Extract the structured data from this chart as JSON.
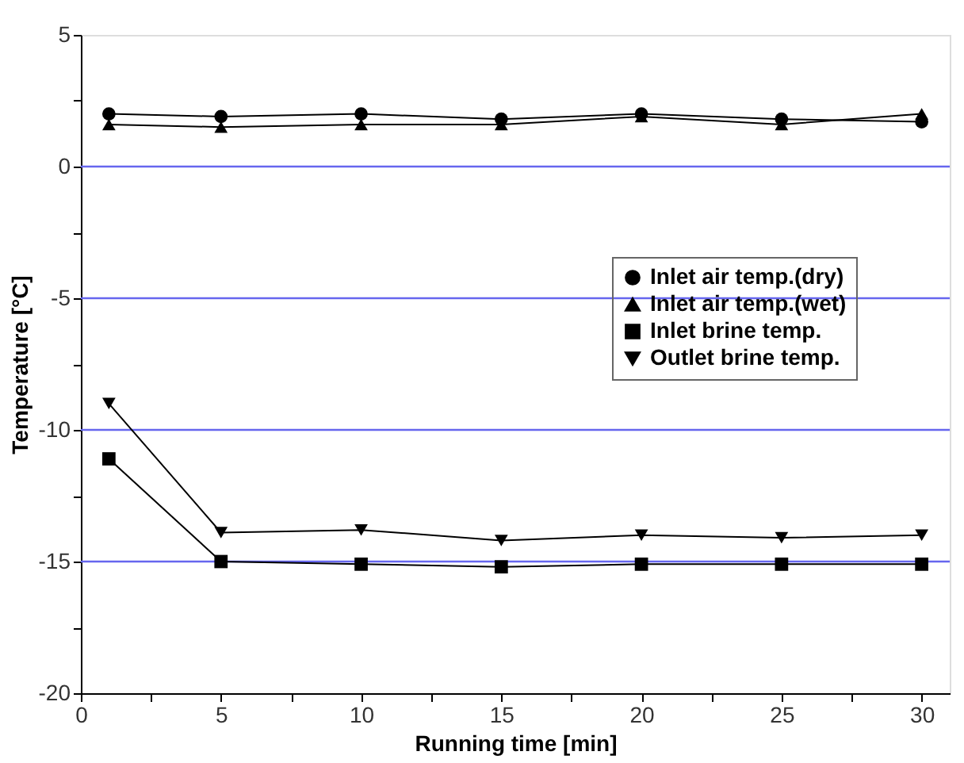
{
  "chart_data": {
    "type": "line",
    "xlabel": "Running time [min]",
    "ylabel": "Temperature [°C]",
    "x": [
      1,
      5,
      10,
      15,
      20,
      25,
      30
    ],
    "series": [
      {
        "name": "Inlet air temp.(dry)",
        "color": "#000000",
        "marker": "circle",
        "values": [
          2.0,
          1.9,
          2.0,
          1.8,
          2.0,
          1.8,
          1.7
        ]
      },
      {
        "name": "Inlet air temp.(wet)",
        "color": "#000000",
        "marker": "triangle",
        "values": [
          1.6,
          1.5,
          1.6,
          1.6,
          1.9,
          1.6,
          2.0
        ]
      },
      {
        "name": "Inlet brine temp.",
        "color": "#000000",
        "marker": "square",
        "values": [
          -11.1,
          -15.0,
          -15.1,
          -15.2,
          -15.1,
          -15.1,
          -15.1
        ]
      },
      {
        "name": "Outlet brine temp.",
        "color": "#000000",
        "marker": "triangle-down",
        "values": [
          -9.0,
          -13.9,
          -13.8,
          -14.2,
          -14.0,
          -14.1,
          -14.0
        ]
      }
    ],
    "xlim": [
      0,
      31
    ],
    "xticks": [
      0,
      {
        "value": 2.5,
        "label": null
      },
      5,
      {
        "value": 7.5,
        "label": null
      },
      10,
      {
        "value": 12.5,
        "label": null
      },
      15,
      {
        "value": 17.5,
        "label": null
      },
      20,
      {
        "value": 22.5,
        "label": null
      },
      25,
      {
        "value": 27.5,
        "label": null
      },
      30
    ],
    "ylim": [
      -20,
      5
    ],
    "yticks": [
      -20,
      {
        "value": -17.5,
        "label": null
      },
      -15,
      {
        "value": -12.5,
        "label": null
      },
      -10,
      {
        "value": -7.5,
        "label": null
      },
      -5,
      {
        "value": -2.5,
        "label": null
      },
      0,
      {
        "value": 2.5,
        "label": null
      },
      5
    ],
    "grid": "y",
    "legend": "right",
    "line_style": "solid"
  }
}
